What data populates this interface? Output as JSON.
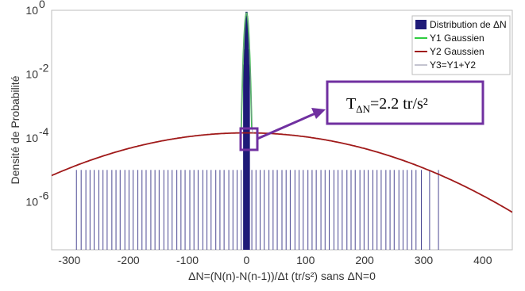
{
  "chart_data": {
    "type": "line",
    "xlabel": "ΔN=(N(n)-N(n-1))/Δt (tr/s²) sans ΔN=0",
    "ylabel": "Densité de Probabilité",
    "xlim": [
      -330,
      450
    ],
    "ylim_log10": [
      -7.5,
      0
    ],
    "y_scale": "log",
    "x_ticks": [
      -300,
      -200,
      -100,
      0,
      100,
      200,
      300,
      400
    ],
    "x_tick_labels": [
      "-300",
      "-200",
      "-100",
      "0",
      "100",
      "200",
      "300",
      "400"
    ],
    "y_ticks_log10": [
      0,
      -2,
      -4,
      -6
    ],
    "y_tick_labels": [
      {
        "base": "10",
        "exp": "0"
      },
      {
        "base": "10",
        "exp": "-2"
      },
      {
        "base": "10",
        "exp": "-4"
      },
      {
        "base": "10",
        "exp": "-6"
      }
    ],
    "grid": false,
    "legend_position": "top-right",
    "series": [
      {
        "name": "Distribution de ΔN",
        "kind": "histogram",
        "color": "#1f1b78"
      },
      {
        "name": "Y1 Gaussien",
        "kind": "gaussian",
        "mean": 0,
        "sigma": 2.2,
        "peak": 0.82,
        "color": "#2ecc40"
      },
      {
        "name": "Y2 Gaussien",
        "kind": "gaussian",
        "mean": 0,
        "sigma": 133,
        "peak": 0.000145,
        "color": "#a01a1a"
      },
      {
        "name": "Y3=Y1+Y2",
        "kind": "sum",
        "color": "#8a8aa0"
      }
    ],
    "histogram_low_x": [
      -288,
      -280,
      -272,
      -265,
      -258,
      -250,
      -243,
      -236,
      -228,
      -221,
      -214,
      -206,
      -199,
      -192,
      -184,
      -177,
      -170,
      -162,
      -155,
      -148,
      -140,
      -133,
      -126,
      -118,
      -111,
      -104,
      -96,
      -89,
      -82,
      -74,
      -67,
      -60,
      -52,
      -45,
      -38,
      -30,
      -23,
      -16,
      -9,
      9,
      16,
      23,
      30,
      38,
      45,
      52,
      60,
      67,
      74,
      82,
      89,
      96,
      104,
      111,
      118,
      126,
      133,
      140,
      148,
      155,
      162,
      170,
      177,
      184,
      192,
      199,
      206,
      214,
      221,
      228,
      236,
      243,
      250,
      258,
      265,
      272,
      280,
      287,
      296,
      310,
      325
    ],
    "histogram_low_y": 1e-05,
    "histogram_mid_x": [
      -4,
      -3,
      -2,
      -1,
      0,
      1,
      2,
      3,
      4
    ],
    "histogram_mid_y": [
      0.02,
      0.06,
      0.2,
      0.55,
      0.9,
      0.55,
      0.2,
      0.06,
      0.02
    ],
    "annotation": {
      "text_main": "T",
      "text_sub": "ΔN",
      "text_rest": "=2.2 tr/s²",
      "border_color": "#7030a0"
    }
  }
}
